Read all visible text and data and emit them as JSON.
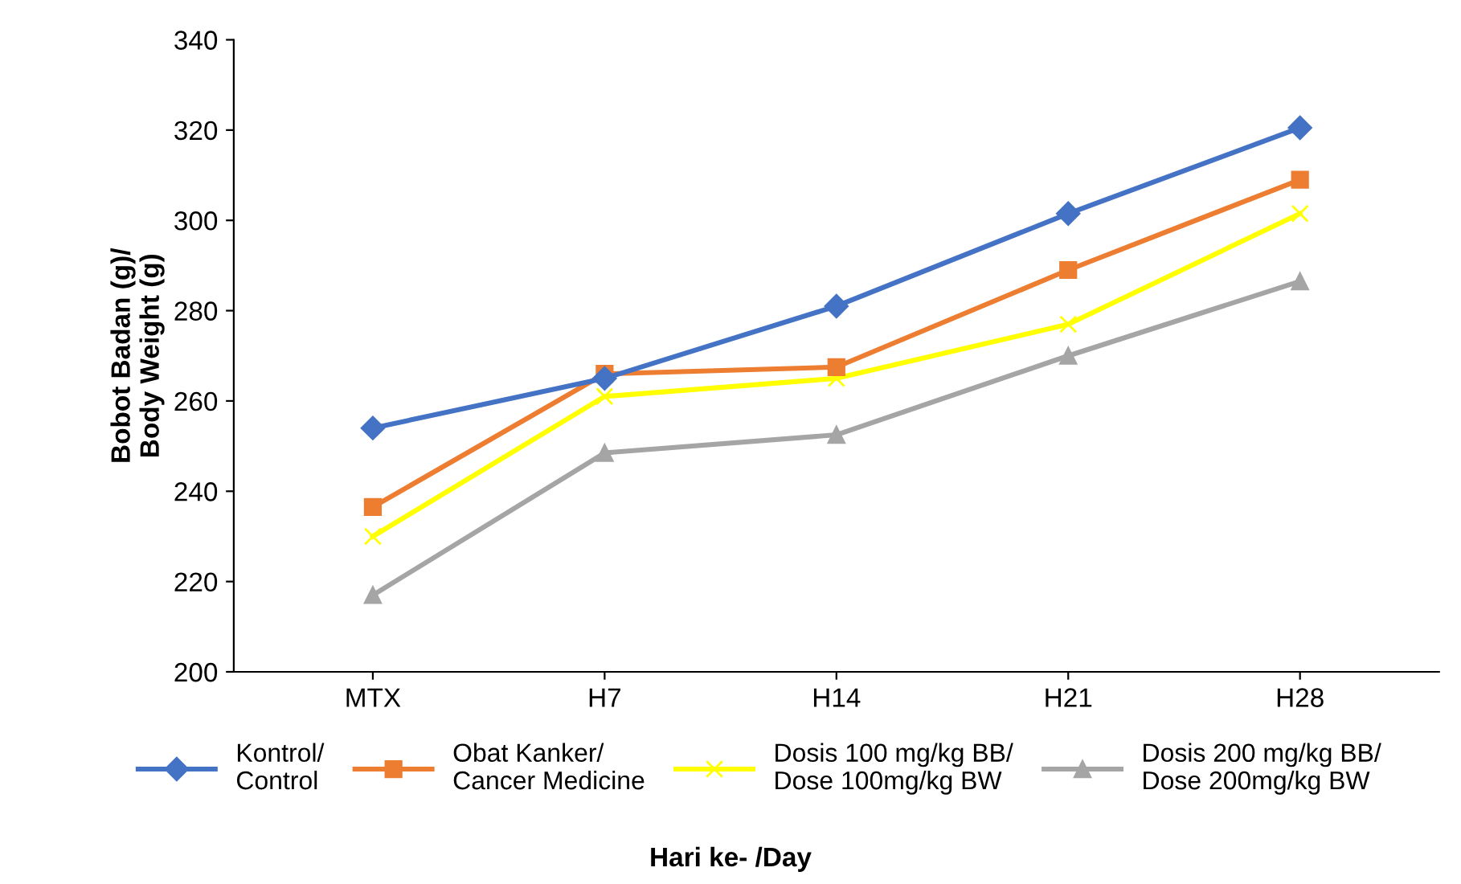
{
  "chart_data": {
    "type": "line",
    "annotations": [
      "Hari ke- /Day"
    ],
    "ylabel": "Bobot Badan (g)/\nBody Weight (g)",
    "categories": [
      "MTX",
      "H7",
      "H14",
      "H21",
      "H28"
    ],
    "series": [
      {
        "name": "Kontrol/\nControl",
        "color": "#4472c4",
        "marker": "diamond",
        "values": [
          254,
          265,
          281,
          301.5,
          320.5
        ]
      },
      {
        "name": "Obat Kanker/\nCancer Medicine",
        "color": "#ed7d31",
        "marker": "square",
        "values": [
          236.5,
          266,
          267.5,
          289,
          309
        ]
      },
      {
        "name": "Dosis 100 mg/kg BB/\nDose 100mg/kg BW",
        "color": "#ffff00",
        "marker": "cross",
        "values": [
          230,
          261,
          265,
          277,
          301.5
        ]
      },
      {
        "name": "Dosis 200 mg/kg BB/\nDose 200mg/kg BW",
        "color": "#a5a5a5",
        "marker": "triangle",
        "values": [
          217,
          248.5,
          252.5,
          270,
          286.5
        ]
      }
    ],
    "ylim": [
      200,
      340
    ],
    "yticks": [
      200,
      220,
      240,
      260,
      280,
      300,
      320,
      340
    ],
    "grid": false,
    "legend": "bottom"
  }
}
